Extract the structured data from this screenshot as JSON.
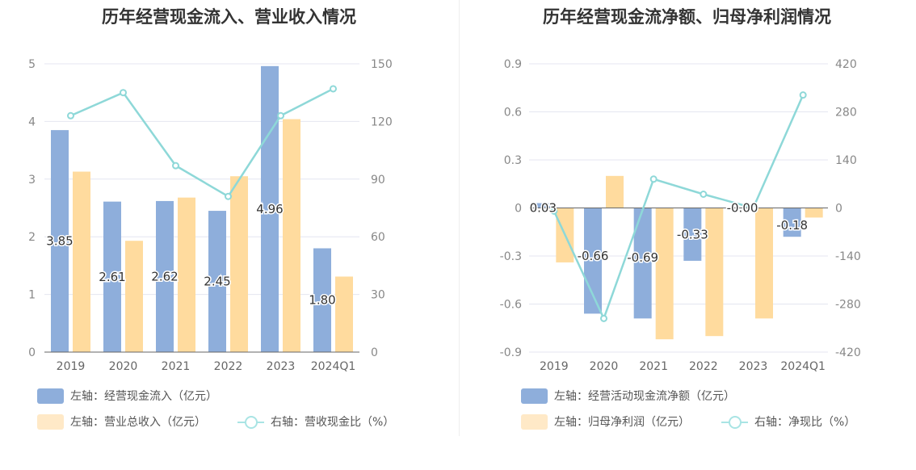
{
  "chart_data": [
    {
      "type": "bar",
      "title": "历年经营现金流入、营业收入情况",
      "categories": [
        "2019",
        "2020",
        "2021",
        "2022",
        "2023",
        "2024Q1"
      ],
      "left_axis": {
        "ylim": [
          0,
          5
        ],
        "ticks": [
          "0",
          "1",
          "2",
          "3",
          "4",
          "5"
        ]
      },
      "right_axis": {
        "ylim": [
          0,
          150
        ],
        "ticks": [
          "0",
          "30",
          "60",
          "90",
          "120",
          "150"
        ]
      },
      "series": [
        {
          "name": "左轴：经营现金流入（亿元）",
          "type": "bar",
          "axis": "left",
          "color": "#8eaedb",
          "values": [
            3.85,
            2.61,
            2.62,
            2.45,
            4.96,
            1.8
          ],
          "labels": [
            "3.85",
            "2.61",
            "2.62",
            "2.45",
            "4.96",
            "1.80"
          ]
        },
        {
          "name": "左轴：营业总收入（亿元）",
          "type": "bar",
          "axis": "left",
          "color": "#ffdb9e",
          "values": [
            3.13,
            1.93,
            2.68,
            3.05,
            4.04,
            1.31
          ]
        },
        {
          "name": "右轴：营收现金比（%）",
          "type": "line",
          "axis": "right",
          "color": "#8ed8d8",
          "values": [
            123,
            135,
            97,
            81,
            123,
            137
          ]
        }
      ],
      "legend": [
        {
          "label": "左轴：经营现金流入（亿元）",
          "kind": "bar",
          "color": "#8eaedb"
        },
        {
          "label": "左轴：营业总收入（亿元）",
          "kind": "bar",
          "color": "#ffe9c7"
        },
        {
          "label": "右轴：营收现金比（%）",
          "kind": "line",
          "color": "#a9e4e4"
        }
      ]
    },
    {
      "type": "bar",
      "title": "历年经营现金流净额、归母净利润情况",
      "categories": [
        "2019",
        "2020",
        "2021",
        "2022",
        "2023",
        "2024Q1"
      ],
      "left_axis": {
        "ylim": [
          -0.9,
          0.9
        ],
        "ticks": [
          "-0.9",
          "-0.6",
          "-0.3",
          "0",
          "0.3",
          "0.6",
          "0.9"
        ]
      },
      "right_axis": {
        "ylim": [
          -420,
          420
        ],
        "ticks": [
          "-420",
          "-280",
          "-140",
          "0",
          "140",
          "280",
          "420"
        ]
      },
      "series": [
        {
          "name": "左轴：经营活动现金流净额（亿元）",
          "type": "bar",
          "axis": "left",
          "color": "#8eaedb",
          "values": [
            0.03,
            -0.66,
            -0.69,
            -0.33,
            0.0,
            -0.18
          ],
          "labels": [
            "0.03",
            "-0.66",
            "-0.69",
            "-0.33",
            "-0.00",
            "-0.18"
          ]
        },
        {
          "name": "左轴：归母净利润（亿元）",
          "type": "bar",
          "axis": "left",
          "color": "#ffdb9e",
          "values": [
            -0.34,
            0.2,
            -0.82,
            -0.8,
            -0.69,
            -0.06
          ]
        },
        {
          "name": "右轴：净现比（%）",
          "type": "line",
          "axis": "right",
          "color": "#8ed8d8",
          "values": [
            -9,
            -322,
            84,
            40,
            0,
            329
          ]
        }
      ],
      "legend": [
        {
          "label": "左轴：经营活动现金流净额（亿元）",
          "kind": "bar",
          "color": "#8eaedb"
        },
        {
          "label": "左轴：归母净利润（亿元）",
          "kind": "bar",
          "color": "#ffe9c7"
        },
        {
          "label": "右轴：净现比（%）",
          "kind": "line",
          "color": "#a9e4e4"
        }
      ]
    }
  ]
}
